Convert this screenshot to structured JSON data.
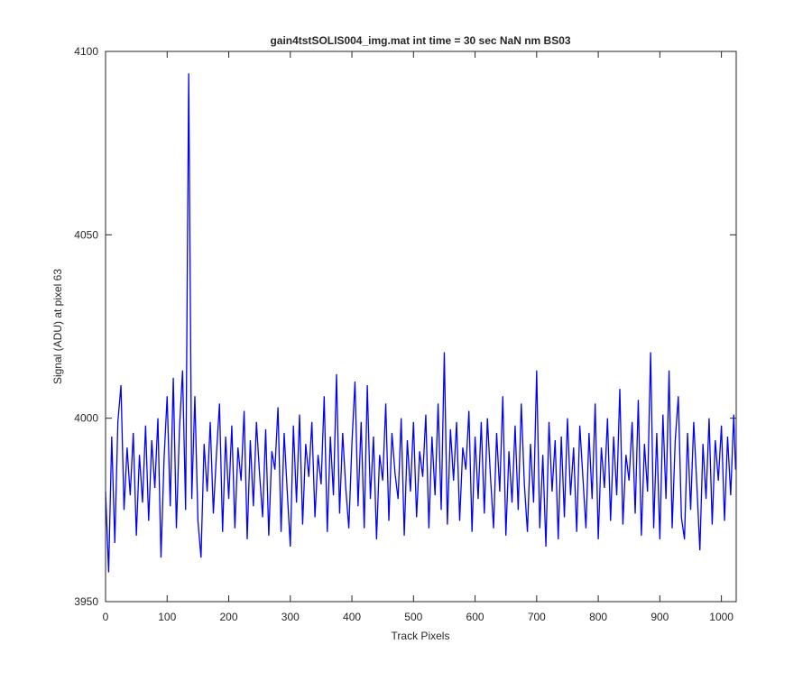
{
  "chart_data": {
    "type": "line",
    "title": "gain4tstSOLIS004_img.mat int time = 30 sec  NaN nm BS03",
    "xlabel": "Track Pixels",
    "ylabel": "Signal (ADU) at pixel 63",
    "xlim": [
      0,
      1024
    ],
    "ylim": [
      3950,
      4100
    ],
    "xticks": [
      0,
      100,
      200,
      300,
      400,
      500,
      600,
      700,
      800,
      900,
      1000
    ],
    "yticks": [
      3950,
      4000,
      4050,
      4100
    ],
    "grid": false,
    "series": [
      {
        "color": "#0000ff",
        "x": [
          0,
          5,
          10,
          15,
          20,
          25,
          30,
          35,
          40,
          45,
          50,
          55,
          60,
          65,
          70,
          75,
          80,
          85,
          90,
          95,
          100,
          105,
          110,
          115,
          120,
          125,
          130,
          135,
          140,
          145,
          150,
          155,
          160,
          165,
          170,
          175,
          180,
          185,
          190,
          195,
          200,
          205,
          210,
          215,
          220,
          225,
          230,
          235,
          240,
          245,
          250,
          255,
          260,
          265,
          270,
          275,
          280,
          285,
          290,
          295,
          300,
          305,
          310,
          315,
          320,
          325,
          330,
          335,
          340,
          345,
          350,
          355,
          360,
          365,
          370,
          375,
          380,
          385,
          390,
          395,
          400,
          405,
          410,
          415,
          420,
          425,
          430,
          435,
          440,
          445,
          450,
          455,
          460,
          465,
          470,
          475,
          480,
          485,
          490,
          495,
          500,
          505,
          510,
          515,
          520,
          525,
          530,
          535,
          540,
          545,
          550,
          555,
          560,
          565,
          570,
          575,
          580,
          585,
          590,
          595,
          600,
          605,
          610,
          615,
          620,
          625,
          630,
          635,
          640,
          645,
          650,
          655,
          660,
          665,
          670,
          675,
          680,
          685,
          690,
          695,
          700,
          705,
          710,
          715,
          720,
          725,
          730,
          735,
          740,
          745,
          750,
          755,
          760,
          765,
          770,
          775,
          780,
          785,
          790,
          795,
          800,
          805,
          810,
          815,
          820,
          825,
          830,
          835,
          840,
          845,
          850,
          855,
          860,
          865,
          870,
          875,
          880,
          885,
          890,
          895,
          900,
          905,
          910,
          915,
          920,
          925,
          930,
          935,
          940,
          945,
          950,
          955,
          960,
          965,
          970,
          975,
          980,
          985,
          990,
          995,
          1000,
          1005,
          1010,
          1015,
          1020,
          1023
        ],
        "values": [
          3980,
          3958,
          3995,
          3966,
          3999,
          4009,
          3975,
          3992,
          3979,
          3996,
          3968,
          3990,
          3977,
          3998,
          3972,
          3994,
          3981,
          4000,
          3962,
          3989,
          4006,
          3976,
          4011,
          3970,
          3997,
          4013,
          3975,
          4094,
          3978,
          4006,
          3972,
          3962,
          3993,
          3980,
          3999,
          3974,
          3990,
          4004,
          3969,
          3995,
          3978,
          3998,
          3970,
          3992,
          3983,
          4002,
          3967,
          3994,
          3976,
          3999,
          3985,
          3973,
          3997,
          3968,
          3991,
          3986,
          4003,
          3969,
          3996,
          3980,
          3965,
          3998,
          3977,
          4001,
          3971,
          3993,
          3984,
          3999,
          3973,
          3990,
          3982,
          4006,
          3969,
          3995,
          3979,
          4012,
          3974,
          3996,
          3981,
          3970,
          3993,
          4010,
          3976,
          3999,
          3970,
          4009,
          3978,
          3995,
          3967,
          3990,
          3983,
          4004,
          3972,
          3996,
          3985,
          3978,
          4000,
          3968,
          3994,
          3980,
          3999,
          3973,
          3991,
          3984,
          4001,
          3970,
          3995,
          3979,
          4004,
          3975,
          4018,
          3971,
          3997,
          3983,
          3999,
          3972,
          3992,
          3986,
          4002,
          3969,
          3995,
          3978,
          3999,
          3974,
          4000,
          3984,
          3970,
          3996,
          3980,
          4006,
          3968,
          3991,
          3977,
          3998,
          3975,
          4004,
          3982,
          3969,
          3993,
          3977,
          4013,
          3970,
          3990,
          3965,
          3999,
          3980,
          3994,
          3967,
          3995,
          3973,
          4000,
          3979,
          3992,
          3969,
          3998,
          3984,
          3970,
          3996,
          3978,
          4004,
          3967,
          3992,
          3981,
          4000,
          3972,
          3995,
          3979,
          4008,
          3971,
          3990,
          3983,
          3999,
          3974,
          4005,
          3968,
          3993,
          3980,
          4018,
          3970,
          3996,
          3967,
          4001,
          3978,
          4013,
          3970,
          3994,
          4006,
          3973,
          3967,
          3996,
          3975,
          3999,
          3982,
          3964,
          3993,
          3978,
          4000,
          3971,
          3994,
          3983,
          3998,
          3972,
          3995,
          3979,
          4001,
          3986
        ]
      }
    ]
  }
}
